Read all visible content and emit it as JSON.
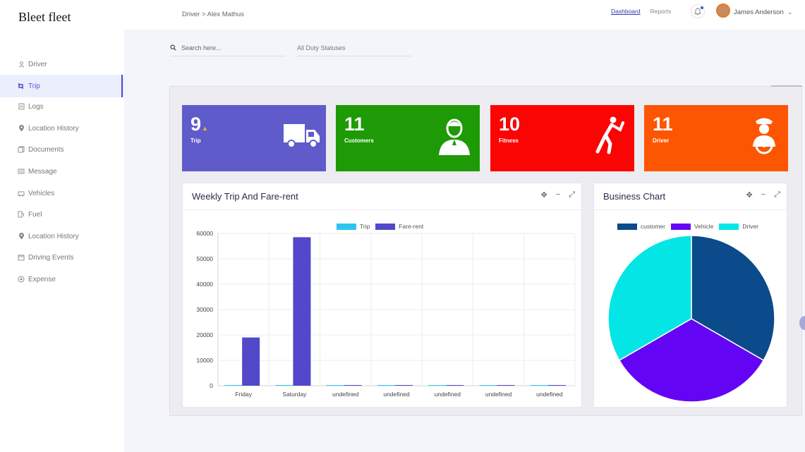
{
  "app": {
    "brand": "Bleet fleet"
  },
  "header": {
    "breadcrumb": "Driver > Alex Mathus",
    "links": [
      "Dashboard",
      "Reports"
    ],
    "user_name": "James Anderson"
  },
  "sidebar": {
    "items": [
      {
        "label": "Driver",
        "icon": "person-icon"
      },
      {
        "label": "Trip",
        "icon": "trip-icon",
        "active": true
      },
      {
        "label": "Logs",
        "icon": "logs-icon"
      },
      {
        "label": "Location History",
        "icon": "map-pin-icon"
      },
      {
        "label": "Documents",
        "icon": "documents-icon"
      },
      {
        "label": "Message",
        "icon": "message-icon"
      },
      {
        "label": "Vehicles",
        "icon": "vehicles-icon"
      },
      {
        "label": "Fuel",
        "icon": "fuel-icon"
      },
      {
        "label": "Location History",
        "icon": "map-pin-icon"
      },
      {
        "label": "Driving Events",
        "icon": "calendar-icon"
      },
      {
        "label": "Expense",
        "icon": "expense-icon"
      }
    ]
  },
  "filters": {
    "search_placeholder": "Search here...",
    "duty_status": "All Duty Statuses"
  },
  "cards": [
    {
      "value": "9",
      "label": "Trip",
      "color": "#5f5bcb",
      "icon": "truck-icon"
    },
    {
      "value": "11",
      "label": "Customers",
      "color": "#1e9a06",
      "icon": "customer-icon"
    },
    {
      "value": "10",
      "label": "Fitness",
      "color": "#fb0404",
      "icon": "fitness-icon"
    },
    {
      "value": "11",
      "label": "Driver",
      "color": "#fd5602",
      "icon": "driver-icon"
    }
  ],
  "weekly_panel": {
    "title": "Weekly Trip And Fare-rent"
  },
  "business_panel": {
    "title": "Business Chart"
  },
  "chart_data": [
    {
      "type": "bar",
      "title": "Weekly Trip And Fare-rent",
      "categories": [
        "Friday",
        "Saturday",
        "undefined",
        "undefined",
        "undefined",
        "undefined",
        "undefined"
      ],
      "series": [
        {
          "name": "Trip",
          "color": "#2bc6f0",
          "values": [
            0,
            0,
            0,
            0,
            0,
            0,
            0
          ]
        },
        {
          "name": "Fare-rent",
          "color": "#5248c9",
          "values": [
            19000,
            58500,
            0,
            0,
            0,
            0,
            0
          ]
        }
      ],
      "yticks": [
        0,
        10000,
        20000,
        30000,
        40000,
        50000,
        60000
      ],
      "ylim": [
        0,
        60000
      ],
      "legend": "top",
      "grid": true
    },
    {
      "type": "pie",
      "title": "Business Chart",
      "labels": [
        "customer",
        "Vehicle",
        "Driver"
      ],
      "values": [
        1,
        1,
        1
      ],
      "colors": [
        "#0b4a8b",
        "#6404f5",
        "#04e6e6"
      ],
      "legend": "top"
    }
  ]
}
